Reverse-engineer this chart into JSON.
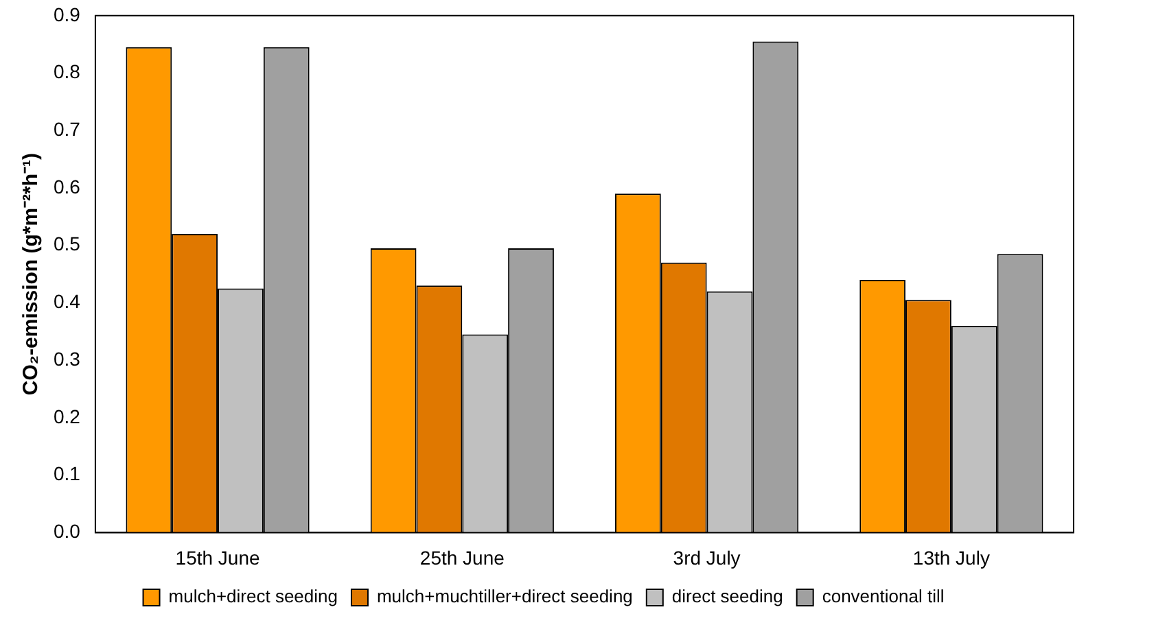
{
  "chart_data": {
    "type": "bar",
    "ylabel": "CO₂-emission (g*m⁻²*h⁻¹)",
    "categories": [
      "15th June",
      "25th June",
      "3rd July",
      "13th July"
    ],
    "series": [
      {
        "name": "mulch+direct seeding",
        "color": "#ff9900",
        "values": [
          0.845,
          0.495,
          0.59,
          0.44
        ]
      },
      {
        "name": "mulch+muchtiller+direct seeding",
        "color": "#e07800",
        "values": [
          0.52,
          0.43,
          0.47,
          0.405
        ]
      },
      {
        "name": "direct seeding",
        "color": "#c0c0c0",
        "values": [
          0.425,
          0.345,
          0.42,
          0.36
        ]
      },
      {
        "name": "conventional till",
        "color": "#a0a0a0",
        "values": [
          0.845,
          0.495,
          0.855,
          0.485
        ]
      }
    ],
    "ylim": [
      0,
      0.9
    ],
    "yticks": [
      {
        "value": 0,
        "label": "0.0"
      },
      0.1,
      0.2,
      0.3,
      0.4,
      0.5,
      0.6,
      0.7,
      0.8,
      0.9
    ],
    "grid": false,
    "legend": "bottom"
  }
}
